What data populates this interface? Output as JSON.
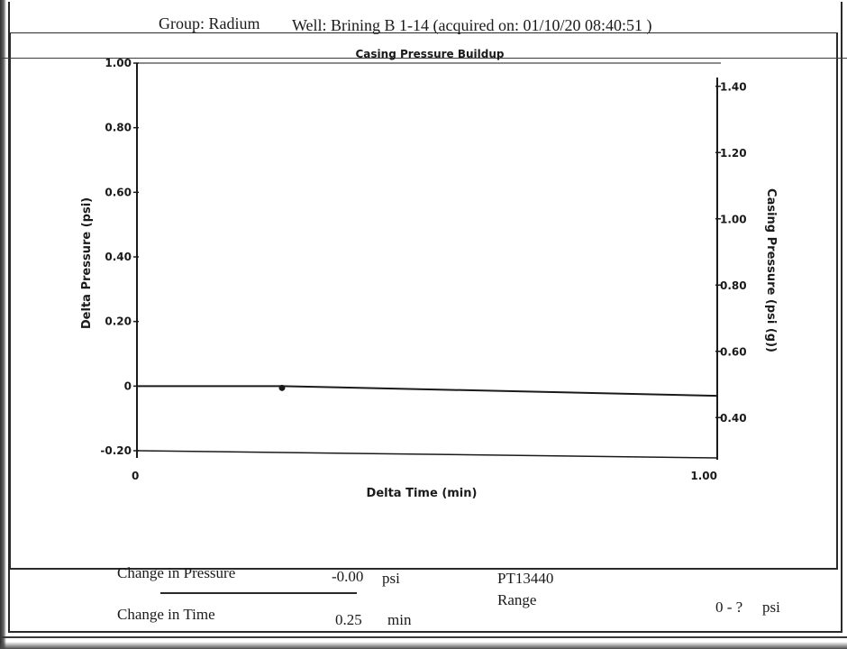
{
  "header": {
    "group": "Group: Radium",
    "well": "Well: Brining B 1-14 (acquired on: 01/10/20 08:40:51 )"
  },
  "chart_data": {
    "type": "line",
    "title": "Casing Pressure Buildup",
    "xlabel": "Delta Time (min)",
    "ylabel": "Delta Pressure (psi)",
    "y2label": "Casing Pressure (psi (g))",
    "xlim": [
      0,
      1.0
    ],
    "ylim": [
      -0.2,
      1.0
    ],
    "y2lim": [
      0.3,
      1.47
    ],
    "x_ticks": [
      {
        "value": 0,
        "label": "0"
      },
      {
        "value": 1.0,
        "label": "1.00"
      }
    ],
    "y_ticks": [
      {
        "value": 1.0,
        "label": "1.00"
      },
      {
        "value": 0.8,
        "label": "0.80"
      },
      {
        "value": 0.6,
        "label": "0.60"
      },
      {
        "value": 0.4,
        "label": "0.40"
      },
      {
        "value": 0.2,
        "label": "0.20"
      },
      {
        "value": 0,
        "label": "0"
      },
      {
        "value": -0.2,
        "label": "-0.20"
      }
    ],
    "y2_ticks": [
      {
        "value": 1.4,
        "label": "1.40"
      },
      {
        "value": 1.2,
        "label": "1.20"
      },
      {
        "value": 1.0,
        "label": "1.00"
      },
      {
        "value": 0.8,
        "label": "0.80"
      },
      {
        "value": 0.6,
        "label": "0.60"
      },
      {
        "value": 0.4,
        "label": "0.40"
      }
    ],
    "series": [
      {
        "axis": "left",
        "x": [
          0,
          0.25,
          1.0
        ],
        "y": [
          0,
          0,
          -0.03
        ]
      }
    ],
    "markers": [
      {
        "x": 0.25,
        "y": 0
      }
    ],
    "grid": false,
    "legend": "none"
  },
  "footer": {
    "change_pressure_label": "Change in Pressure",
    "change_pressure_value": "-0.00",
    "change_pressure_unit": "psi",
    "gauge_id": "PT13440",
    "range_label": "Range",
    "range_value": "0 - ?",
    "range_unit": "psi",
    "change_time_label": "Change in Time",
    "change_time_value": "0.25",
    "change_time_unit": "min"
  }
}
